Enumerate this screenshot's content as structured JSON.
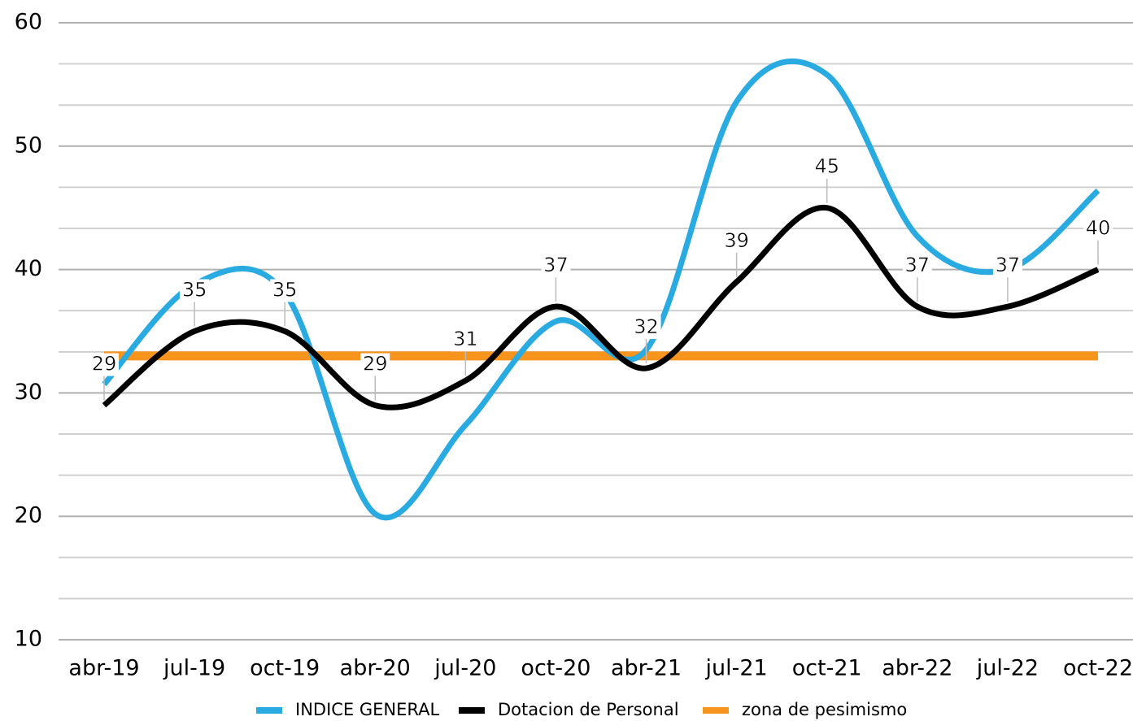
{
  "chart_data": {
    "type": "line",
    "categories": [
      "abr-19",
      "jul-19",
      "oct-19",
      "abr-20",
      "jul-20",
      "oct-20",
      "abr-21",
      "jul-21",
      "oct-21",
      "abr-22",
      "jul-22",
      "oct-22"
    ],
    "series": [
      {
        "name": "INDICE GENERAL",
        "color": "#29abe2",
        "values": [
          30.7,
          38.8,
          38.1,
          20.2,
          27.4,
          35.8,
          33.5,
          53.6,
          55.8,
          42.7,
          40,
          46.4
        ]
      },
      {
        "name": "Dotacion de Personal",
        "color": "#000000",
        "values": [
          29,
          35,
          35,
          29,
          31,
          37,
          32,
          39,
          45,
          37,
          37,
          40
        ],
        "data_labels": true
      },
      {
        "name": "zona de pesimismo",
        "color": "#f7941d",
        "values": [
          33,
          33,
          33,
          33,
          33,
          33,
          33,
          33,
          33,
          33,
          33,
          33
        ]
      }
    ],
    "ylim": [
      10,
      60
    ],
    "yticks": [
      10,
      20,
      30,
      40,
      50,
      60
    ],
    "yminorticks": [
      13.33,
      16.67,
      23.33,
      26.67,
      33.33,
      36.67,
      43.33,
      46.67,
      53.33,
      56.67
    ],
    "grid": true,
    "smooth": true,
    "legend": "bottom"
  }
}
